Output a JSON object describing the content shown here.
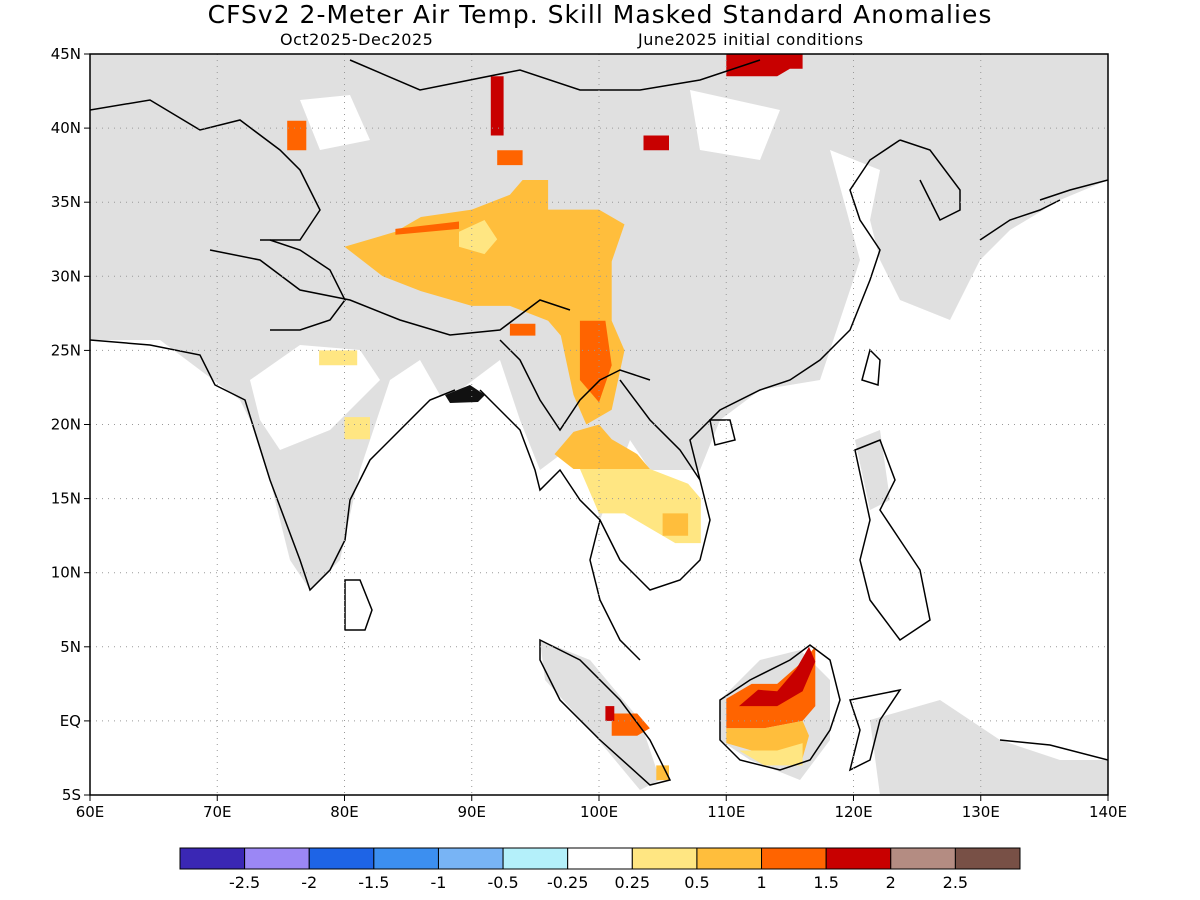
{
  "title": "CFSv2 2-Meter Air Temp. Skill Masked Standard Anomalies",
  "period": "Oct2025-Dec2025",
  "initial_conditions": "June2025 initial conditions",
  "map": {
    "lon_range": [
      60,
      140
    ],
    "lat_range": [
      -5,
      45
    ],
    "lat_ticks": [
      {
        "v": 45,
        "label": "45N"
      },
      {
        "v": 40,
        "label": "40N"
      },
      {
        "v": 35,
        "label": "35N"
      },
      {
        "v": 30,
        "label": "30N"
      },
      {
        "v": 25,
        "label": "25N"
      },
      {
        "v": 20,
        "label": "20N"
      },
      {
        "v": 15,
        "label": "15N"
      },
      {
        "v": 10,
        "label": "10N"
      },
      {
        "v": 5,
        "label": "5N"
      },
      {
        "v": 0,
        "label": "EQ"
      },
      {
        "v": -5,
        "label": "5S"
      }
    ],
    "lon_ticks": [
      {
        "v": 60,
        "label": "60E"
      },
      {
        "v": 70,
        "label": "70E"
      },
      {
        "v": 80,
        "label": "80E"
      },
      {
        "v": 90,
        "label": "90E"
      },
      {
        "v": 100,
        "label": "100E"
      },
      {
        "v": 110,
        "label": "110E"
      },
      {
        "v": 120,
        "label": "120E"
      },
      {
        "v": 130,
        "label": "130E"
      },
      {
        "v": 140,
        "label": "140E"
      }
    ],
    "masked_color": "#e0e0e0",
    "coast_color": "#000000"
  },
  "colorbar": {
    "colors": [
      "#3a27b4",
      "#9b87f5",
      "#1e64e6",
      "#3c8ff0",
      "#78b4f5",
      "#b4f0fa",
      "#ffffff",
      "#ffe682",
      "#ffbe3c",
      "#ff6400",
      "#c80000",
      "#b48c82",
      "#785046"
    ],
    "labels": [
      "-2.5",
      "-2",
      "-1.5",
      "-1",
      "-0.5",
      "-0.25",
      "0.25",
      "0.5",
      "1",
      "1.5",
      "2",
      "2.5"
    ]
  },
  "anomaly_regions": [
    {
      "level": "0.5",
      "color": "#ffbe3c",
      "poly": [
        [
          84,
          33
        ],
        [
          86,
          34
        ],
        [
          90,
          34.5
        ],
        [
          93,
          35.5
        ],
        [
          94,
          36.5
        ],
        [
          96,
          36.5
        ],
        [
          96,
          34.5
        ],
        [
          100,
          34.5
        ],
        [
          102,
          33.5
        ],
        [
          101,
          31
        ],
        [
          101,
          27
        ],
        [
          102,
          25
        ],
        [
          101,
          21
        ],
        [
          99,
          20
        ],
        [
          98,
          22
        ],
        [
          97,
          26
        ],
        [
          96,
          27
        ],
        [
          93,
          28
        ],
        [
          90,
          28
        ],
        [
          86,
          29
        ],
        [
          83,
          30
        ],
        [
          80,
          32
        ]
      ]
    },
    {
      "level": "0.25",
      "color": "#ffe682",
      "poly": [
        [
          89,
          33
        ],
        [
          91,
          33.8
        ],
        [
          92,
          32.5
        ],
        [
          91,
          31.5
        ],
        [
          89,
          32
        ]
      ]
    },
    {
      "level": "1",
      "color": "#ff6400",
      "poly": [
        [
          98.5,
          27
        ],
        [
          100.5,
          27
        ],
        [
          101,
          24
        ],
        [
          100,
          21.5
        ],
        [
          98.5,
          23
        ]
      ]
    },
    {
      "level": "1",
      "color": "#ff6400",
      "poly": [
        [
          84,
          33.2
        ],
        [
          89,
          33.7
        ],
        [
          89,
          33.2
        ],
        [
          84,
          32.8
        ]
      ]
    },
    {
      "level": "1",
      "color": "#ff6400",
      "poly": [
        [
          92,
          38.5
        ],
        [
          94,
          38.5
        ],
        [
          94,
          37.5
        ],
        [
          92,
          37.5
        ]
      ]
    },
    {
      "level": "1",
      "color": "#ff6400",
      "poly": [
        [
          75.5,
          40.5
        ],
        [
          77,
          40.5
        ],
        [
          77,
          38.5
        ],
        [
          75.5,
          38.5
        ]
      ]
    },
    {
      "level": "1",
      "color": "#ff6400",
      "poly": [
        [
          93,
          26.8
        ],
        [
          95,
          26.8
        ],
        [
          95,
          26
        ],
        [
          93,
          26
        ]
      ]
    },
    {
      "level": "2",
      "color": "#c80000",
      "poly": [
        [
          91.5,
          43.5
        ],
        [
          92.5,
          43.5
        ],
        [
          92.5,
          39.5
        ],
        [
          91.5,
          39.5
        ]
      ]
    },
    {
      "level": "2",
      "color": "#c80000",
      "poly": [
        [
          103.5,
          39.5
        ],
        [
          105.5,
          39.5
        ],
        [
          105.5,
          38.5
        ],
        [
          103.5,
          38.5
        ]
      ]
    },
    {
      "level": "2",
      "color": "#c80000",
      "poly": [
        [
          110,
          45
        ],
        [
          116,
          45
        ],
        [
          116,
          44
        ],
        [
          115,
          44
        ],
        [
          114,
          43.5
        ],
        [
          110,
          43.5
        ]
      ]
    },
    {
      "level": "0.25",
      "color": "#ffe682",
      "poly": [
        [
          98,
          18
        ],
        [
          101,
          18
        ],
        [
          104,
          17
        ],
        [
          107,
          16
        ],
        [
          108,
          15
        ],
        [
          108,
          12
        ],
        [
          106,
          12
        ],
        [
          104,
          13
        ],
        [
          102,
          14
        ],
        [
          100,
          14
        ],
        [
          99,
          16
        ]
      ]
    },
    {
      "level": "0.5",
      "color": "#ffbe3c",
      "poly": [
        [
          96.5,
          18
        ],
        [
          98,
          19.5
        ],
        [
          100,
          20
        ],
        [
          101,
          19
        ],
        [
          103,
          18
        ],
        [
          104,
          17
        ],
        [
          102,
          17
        ],
        [
          100,
          17
        ],
        [
          98,
          17
        ]
      ]
    },
    {
      "level": "0.5",
      "color": "#ffbe3c",
      "poly": [
        [
          105,
          14
        ],
        [
          107,
          14
        ],
        [
          107,
          12.5
        ],
        [
          105,
          12.5
        ]
      ]
    },
    {
      "level": "0.25",
      "color": "#ffe682",
      "poly": [
        [
          80,
          20.5
        ],
        [
          82,
          20.5
        ],
        [
          82,
          19
        ],
        [
          80,
          19
        ]
      ]
    },
    {
      "level": "0.25",
      "color": "#ffe682",
      "poly": [
        [
          78,
          25
        ],
        [
          81,
          25
        ],
        [
          81,
          24
        ],
        [
          78,
          24
        ]
      ]
    },
    {
      "level": "1",
      "color": "#ff6400",
      "poly": [
        [
          110,
          1.5
        ],
        [
          112,
          2.5
        ],
        [
          114,
          2.5
        ],
        [
          116,
          4
        ],
        [
          117,
          5
        ],
        [
          117,
          1
        ],
        [
          116,
          0
        ],
        [
          113,
          -0.5
        ],
        [
          110,
          -0.5
        ]
      ]
    },
    {
      "level": "0.5",
      "color": "#ffbe3c",
      "poly": [
        [
          110,
          -0.5
        ],
        [
          113,
          -0.5
        ],
        [
          116,
          0
        ],
        [
          116.5,
          -1
        ],
        [
          116,
          -2.5
        ],
        [
          112,
          -2
        ],
        [
          110,
          -1.5
        ]
      ]
    },
    {
      "level": "0.25",
      "color": "#ffe682",
      "poly": [
        [
          111,
          -2
        ],
        [
          114,
          -2
        ],
        [
          116,
          -1.5
        ],
        [
          116,
          -3
        ],
        [
          113,
          -3
        ]
      ]
    },
    {
      "level": "2",
      "color": "#c80000",
      "poly": [
        [
          111,
          1
        ],
        [
          112.5,
          2.1
        ],
        [
          114,
          2
        ],
        [
          115.5,
          3.5
        ],
        [
          116.5,
          5
        ],
        [
          117,
          4
        ],
        [
          116,
          2
        ],
        [
          114,
          1
        ]
      ]
    },
    {
      "level": "1",
      "color": "#ff6400",
      "poly": [
        [
          101,
          0.5
        ],
        [
          103,
          0.5
        ],
        [
          104,
          -0.5
        ],
        [
          103,
          -1
        ],
        [
          101,
          -1
        ]
      ]
    },
    {
      "level": "2",
      "color": "#c80000",
      "poly": [
        [
          100.5,
          1
        ],
        [
          101.2,
          1
        ],
        [
          101.2,
          0
        ],
        [
          100.5,
          0
        ]
      ]
    },
    {
      "level": "0.5",
      "color": "#ffbe3c",
      "poly": [
        [
          104.5,
          -3
        ],
        [
          105.5,
          -3
        ],
        [
          105.5,
          -4
        ],
        [
          104.5,
          -4
        ]
      ]
    }
  ]
}
